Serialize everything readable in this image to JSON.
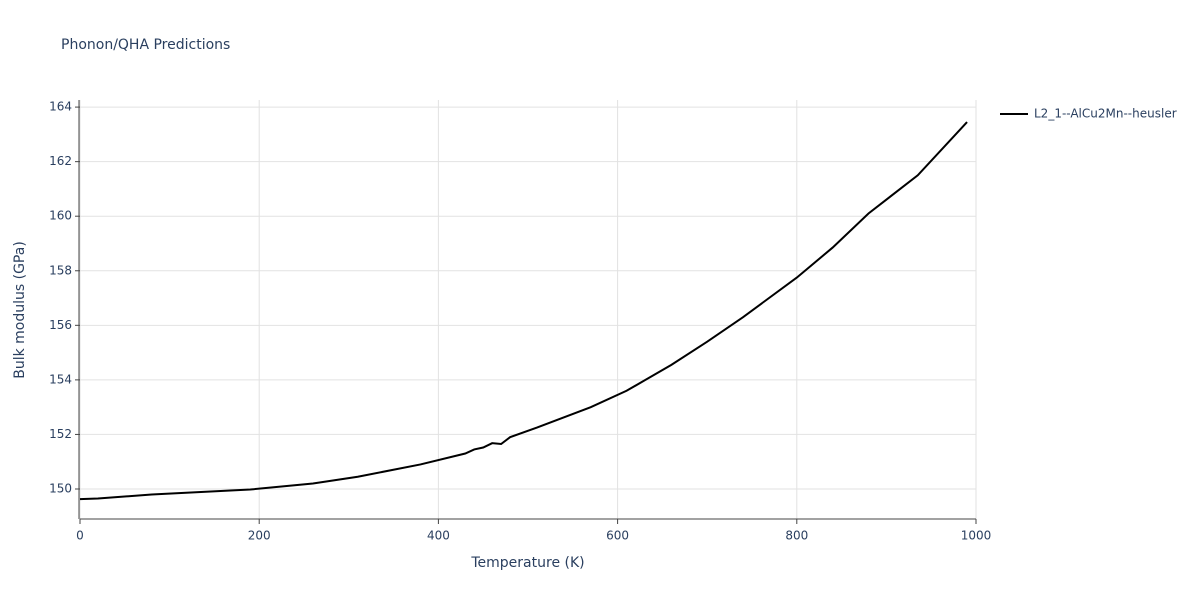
{
  "chart_data": {
    "type": "line",
    "title": "Phonon/QHA Predictions",
    "x_label": "Temperature (K)",
    "y_label": "Bulk modulus (GPa)",
    "x": [
      0,
      20,
      80,
      190,
      260,
      310,
      380,
      430,
      440,
      450,
      460,
      470,
      480,
      510,
      570,
      610,
      660,
      700,
      740,
      800,
      840,
      880,
      935,
      990
    ],
    "series": [
      {
        "name": "L2_1--AlCu2Mn--heusler",
        "color": "#000000",
        "values": [
          149.63,
          149.65,
          149.8,
          149.98,
          150.2,
          150.45,
          150.9,
          151.3,
          151.45,
          151.52,
          151.68,
          151.65,
          151.9,
          152.25,
          153.0,
          153.6,
          154.55,
          155.4,
          156.3,
          157.75,
          158.85,
          160.1,
          161.5,
          163.45
        ]
      }
    ],
    "xlim": [
      0,
      1000
    ],
    "xticks": [
      0,
      200,
      400,
      600,
      800,
      1000
    ],
    "ylim": [
      148.9,
      164.26
    ],
    "yticks": [
      150,
      152,
      154,
      156,
      158,
      160,
      162,
      164
    ],
    "grid": true,
    "legend": "right"
  }
}
